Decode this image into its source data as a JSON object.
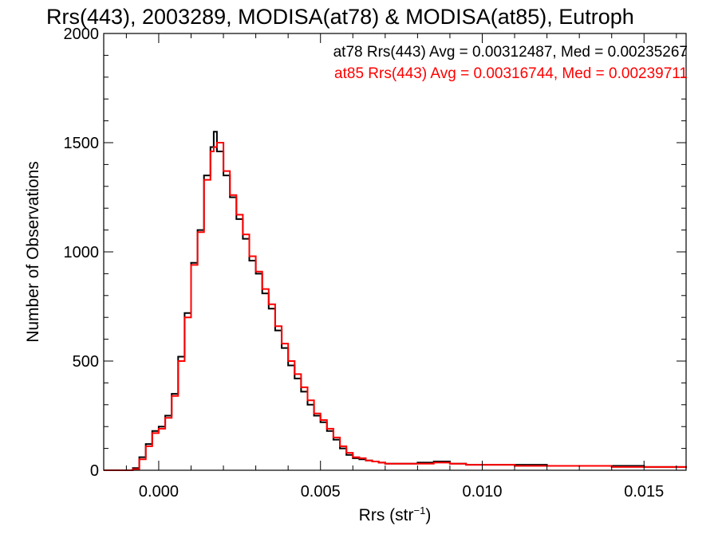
{
  "chart_data": {
    "type": "line",
    "title": "Rrs(443), 2003289, MODISA(at78) & MODISA(at85), Eutroph",
    "xlabel": "Rrs (str",
    "xlabel_sup": "−1",
    "xlabel_close": ")",
    "ylabel": "Number of Observations",
    "xlim": [
      -0.0017,
      0.0163
    ],
    "ylim": [
      0,
      2000
    ],
    "x_ticks": [
      0.0,
      0.005,
      0.01,
      0.015
    ],
    "x_tick_labels": [
      "0.000",
      "0.005",
      "0.010",
      "0.015"
    ],
    "y_ticks": [
      0,
      500,
      1000,
      1500,
      2000
    ],
    "y_tick_labels": [
      "0",
      "500",
      "1000",
      "1500",
      "2000"
    ],
    "grid": false,
    "legend": "top-right",
    "annotations": [
      {
        "text": "at78 Rrs(443) Avg = 0.00312487, Med = 0.00235267",
        "color": "#000000"
      },
      {
        "text": "at85 Rrs(443) Avg = 0.00316744, Med = 0.00239711",
        "color": "#ff0000"
      }
    ],
    "series": [
      {
        "name": "at78",
        "color": "#000000",
        "x": [
          -0.0017,
          -0.001,
          -0.0008,
          -0.0006,
          -0.0004,
          -0.0002,
          0.0,
          0.0002,
          0.0004,
          0.0006,
          0.0008,
          0.001,
          0.0012,
          0.0014,
          0.0016,
          0.0017,
          0.0018,
          0.002,
          0.0022,
          0.0024,
          0.0026,
          0.0028,
          0.003,
          0.0032,
          0.0034,
          0.0036,
          0.0038,
          0.004,
          0.0042,
          0.0044,
          0.0046,
          0.0048,
          0.005,
          0.0052,
          0.0054,
          0.0056,
          0.0058,
          0.006,
          0.0062,
          0.0064,
          0.0066,
          0.0068,
          0.007,
          0.0075,
          0.008,
          0.0085,
          0.009,
          0.0095,
          0.01,
          0.011,
          0.012,
          0.013,
          0.014,
          0.015,
          0.0163
        ],
        "values": [
          0,
          0,
          10,
          60,
          120,
          180,
          200,
          250,
          350,
          520,
          720,
          950,
          1100,
          1350,
          1480,
          1550,
          1460,
          1350,
          1250,
          1150,
          1060,
          960,
          900,
          810,
          740,
          640,
          560,
          480,
          420,
          360,
          300,
          250,
          220,
          180,
          140,
          100,
          70,
          55,
          50,
          45,
          40,
          35,
          30,
          30,
          35,
          40,
          30,
          25,
          25,
          25,
          20,
          20,
          20,
          15,
          10
        ]
      },
      {
        "name": "at85",
        "color": "#ff0000",
        "x": [
          -0.0017,
          -0.001,
          -0.0008,
          -0.0006,
          -0.0004,
          -0.0002,
          0.0,
          0.0002,
          0.0004,
          0.0006,
          0.0008,
          0.001,
          0.0012,
          0.0014,
          0.0016,
          0.0017,
          0.0018,
          0.002,
          0.0022,
          0.0024,
          0.0026,
          0.0028,
          0.003,
          0.0032,
          0.0034,
          0.0036,
          0.0038,
          0.004,
          0.0042,
          0.0044,
          0.0046,
          0.0048,
          0.005,
          0.0052,
          0.0054,
          0.0056,
          0.0058,
          0.006,
          0.0062,
          0.0064,
          0.0066,
          0.0068,
          0.007,
          0.0075,
          0.008,
          0.0085,
          0.009,
          0.0095,
          0.01,
          0.011,
          0.012,
          0.013,
          0.014,
          0.015,
          0.0163
        ],
        "values": [
          0,
          0,
          5,
          50,
          110,
          170,
          190,
          240,
          340,
          500,
          700,
          940,
          1090,
          1330,
          1460,
          1480,
          1500,
          1370,
          1260,
          1170,
          1080,
          980,
          910,
          830,
          760,
          660,
          580,
          500,
          440,
          380,
          320,
          260,
          230,
          190,
          150,
          110,
          80,
          60,
          55,
          45,
          40,
          35,
          30,
          30,
          30,
          35,
          30,
          25,
          25,
          20,
          20,
          20,
          15,
          15,
          10
        ]
      }
    ]
  }
}
